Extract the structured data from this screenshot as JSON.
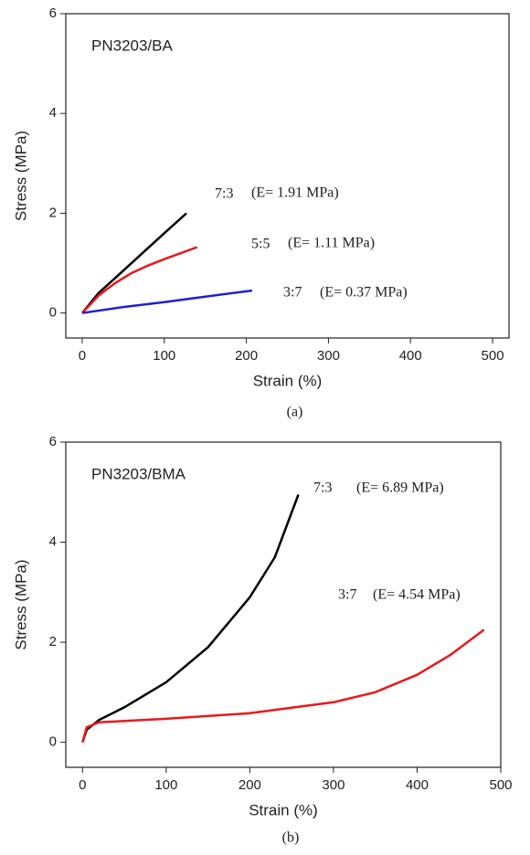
{
  "chart_data": [
    {
      "type": "line",
      "panel_label": "PN3203/BA",
      "caption": "(a)",
      "xlabel": "Strain (%)",
      "ylabel": "Stress (MPa)",
      "xlim": [
        -20,
        520
      ],
      "ylim": [
        -0.5,
        6
      ],
      "xticks": [
        0,
        100,
        200,
        300,
        400,
        500
      ],
      "yticks": [
        0,
        2,
        4,
        6
      ],
      "series": [
        {
          "name": "7:3",
          "annotation": "(E= 1.91 MPa)",
          "color": "#000000",
          "x": [
            0,
            20,
            40,
            60,
            80,
            100,
            127
          ],
          "values": [
            0,
            0.4,
            0.7,
            1.0,
            1.3,
            1.6,
            2.0
          ]
        },
        {
          "name": "5:5",
          "annotation": "(E= 1.11 MPa)",
          "color": "#e8191c",
          "x": [
            0,
            20,
            40,
            60,
            80,
            100,
            120,
            140
          ],
          "values": [
            0,
            0.35,
            0.6,
            0.8,
            0.95,
            1.08,
            1.2,
            1.32
          ]
        },
        {
          "name": "3:7",
          "annotation": "(E= 0.37 MPa)",
          "color": "#1f1fd6",
          "x": [
            0,
            50,
            100,
            150,
            207
          ],
          "values": [
            0,
            0.12,
            0.22,
            0.33,
            0.45
          ]
        }
      ]
    },
    {
      "type": "line",
      "panel_label": "PN3203/BMA",
      "caption": "(b)",
      "xlabel": "Strain (%)",
      "ylabel": "Stress (MPa)",
      "xlim": [
        -20,
        500
      ],
      "ylim": [
        -0.5,
        6
      ],
      "xticks": [
        0,
        100,
        200,
        300,
        400,
        500
      ],
      "yticks": [
        0,
        2,
        4,
        6
      ],
      "series": [
        {
          "name": "7:3",
          "annotation": "(E= 6.89 MPa)",
          "color": "#000000",
          "x": [
            0,
            5,
            20,
            50,
            100,
            150,
            200,
            230,
            258
          ],
          "values": [
            0,
            0.25,
            0.45,
            0.7,
            1.2,
            1.9,
            2.9,
            3.7,
            4.95
          ]
        },
        {
          "name": "3:7",
          "annotation": "(E= 4.54 MPa)",
          "color": "#e8191c",
          "x": [
            0,
            5,
            20,
            100,
            200,
            300,
            350,
            400,
            440,
            480
          ],
          "values": [
            0,
            0.3,
            0.4,
            0.47,
            0.58,
            0.8,
            1.0,
            1.35,
            1.75,
            2.25
          ]
        }
      ]
    }
  ]
}
